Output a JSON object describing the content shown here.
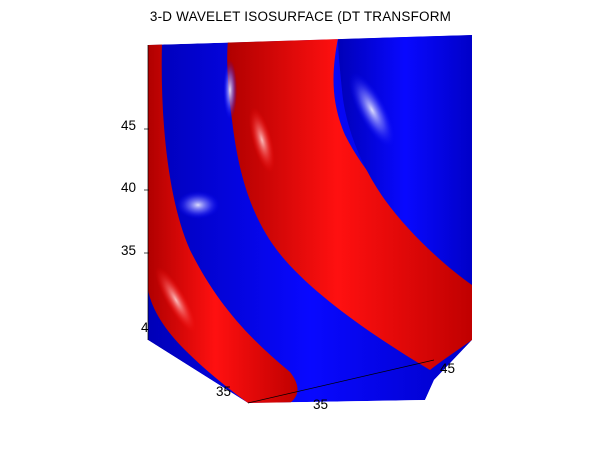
{
  "chart_data": {
    "type": "surface3d",
    "title": "3-D WAVELET ISOSURFACE (DT TRANSFORM",
    "z_ticks": [
      "45",
      "40",
      "35"
    ],
    "x_ticks": [
      "35"
    ],
    "y_ticks": [
      "35"
    ],
    "partial_tick_labels": [
      "4",
      "45"
    ],
    "series": [
      {
        "color": "#ff0000"
      },
      {
        "color": "#0000ff"
      }
    ],
    "background": "#ffffff",
    "grid": false,
    "legend": "none"
  }
}
